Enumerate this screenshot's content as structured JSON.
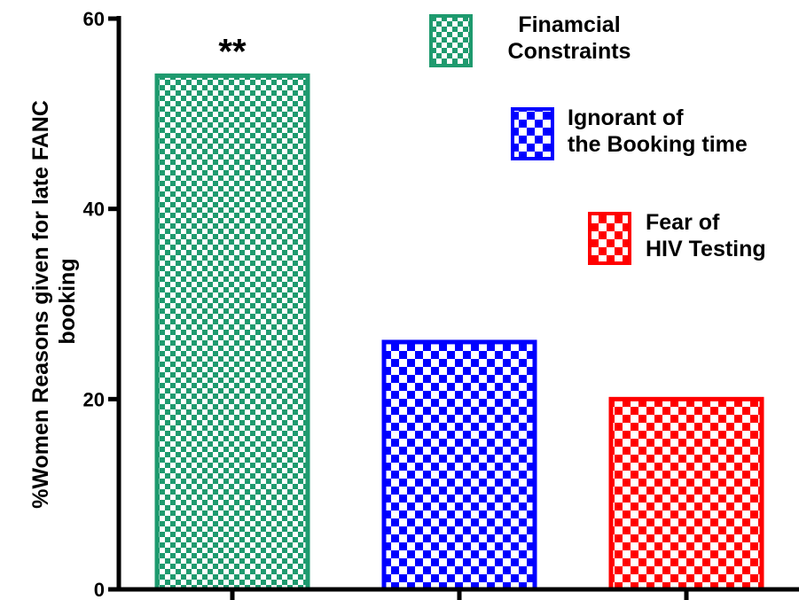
{
  "chart_data": {
    "type": "bar",
    "title": "",
    "xlabel": "",
    "ylabel": [
      "%Women Reasons given for late FANC",
      "booking"
    ],
    "ylim": [
      0,
      60
    ],
    "yticks": [
      "0",
      "20",
      "40",
      "60"
    ],
    "grid": false,
    "legend_placement": "top-right",
    "series": [
      {
        "name": [
          "Finamcial",
          "Constraints"
        ],
        "value": 54,
        "color": "#1e9a6e",
        "annotation": "**"
      },
      {
        "name": [
          "Ignorant of",
          "the Booking time"
        ],
        "value": 26,
        "color": "#0000ff",
        "annotation": ""
      },
      {
        "name": [
          "Fear of",
          "HIV Testing"
        ],
        "value": 20,
        "color": "#ff0000",
        "annotation": ""
      }
    ]
  }
}
